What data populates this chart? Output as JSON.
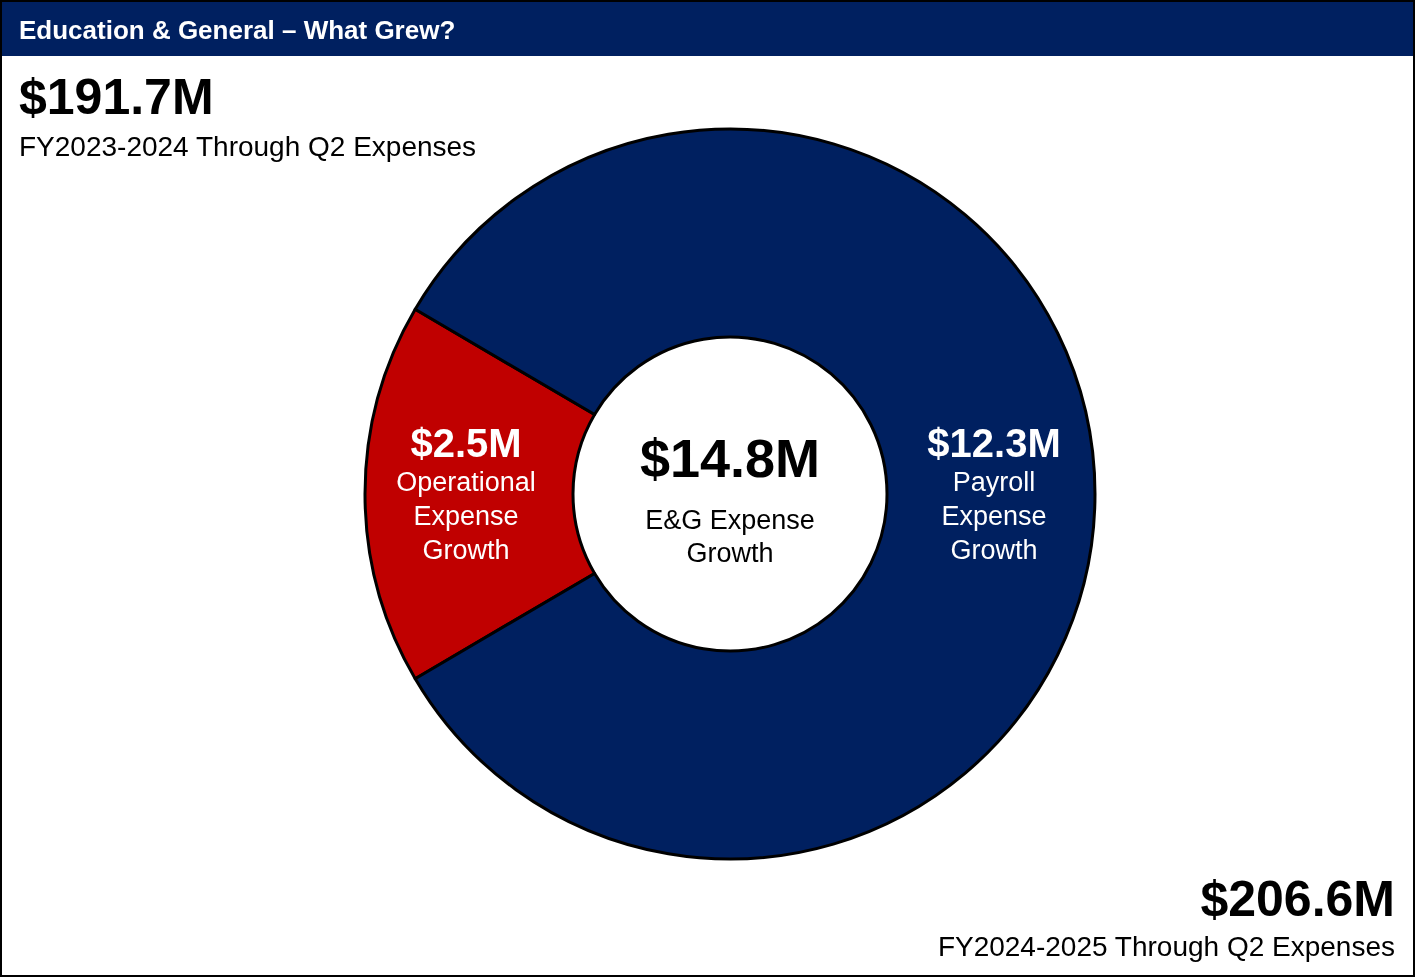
{
  "chart_data": {
    "type": "donut",
    "title": "Education & General – What Grew?",
    "categories": [
      "Operational Expense Growth",
      "Payroll Expense Growth"
    ],
    "values": [
      2.5,
      12.3
    ],
    "colors": [
      "#c00000",
      "#002060"
    ],
    "value_labels": [
      "$2.5M",
      "$12.3M"
    ],
    "annotations": [
      "$191.7M",
      "FY2023-2024 Through Q2 Expenses",
      "$14.8M",
      "E&G Expense Growth",
      "$206.6M",
      "FY2024-2025 Through Q2 Expenses"
    ],
    "legend": false
  }
}
